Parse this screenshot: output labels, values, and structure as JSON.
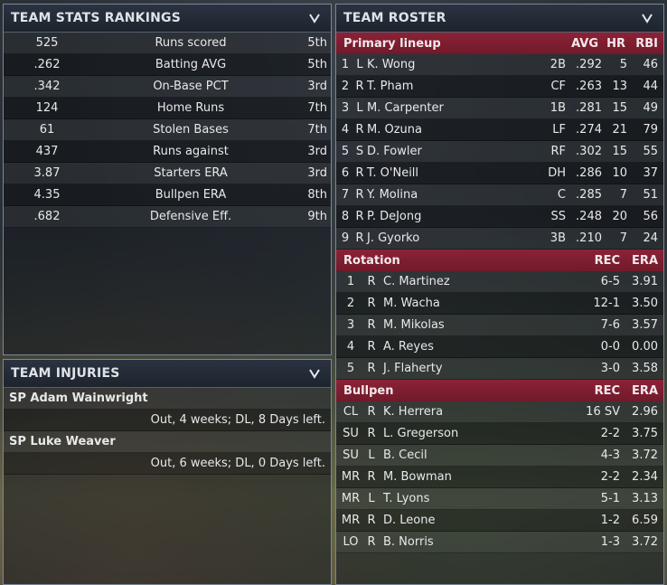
{
  "stats": {
    "title": "TEAM STATS RANKINGS",
    "rows": [
      {
        "value": "525",
        "label": "Runs scored",
        "rank": "5th"
      },
      {
        "value": ".262",
        "label": "Batting AVG",
        "rank": "5th"
      },
      {
        "value": ".342",
        "label": "On-Base PCT",
        "rank": "3rd"
      },
      {
        "value": "124",
        "label": "Home Runs",
        "rank": "7th"
      },
      {
        "value": "61",
        "label": "Stolen Bases",
        "rank": "7th"
      },
      {
        "value": "437",
        "label": "Runs against",
        "rank": "3rd"
      },
      {
        "value": "3.87",
        "label": "Starters ERA",
        "rank": "3rd"
      },
      {
        "value": "4.35",
        "label": "Bullpen ERA",
        "rank": "8th"
      },
      {
        "value": ".682",
        "label": "Defensive Eff.",
        "rank": "9th"
      }
    ]
  },
  "injuries": {
    "title": "TEAM INJURIES",
    "items": [
      {
        "name": "SP Adam Wainwright",
        "status": "Out, 4 weeks; DL, 8 Days left."
      },
      {
        "name": "SP Luke Weaver",
        "status": "Out, 6 weeks; DL, 0 Days left."
      }
    ]
  },
  "roster": {
    "title": "TEAM ROSTER",
    "lineup": {
      "label": "Primary lineup",
      "cols": [
        "AVG",
        "HR",
        "RBI"
      ],
      "rows": [
        {
          "n": "1",
          "hand": "L",
          "name": "K. Wong",
          "pos": "2B",
          "avg": ".292",
          "hr": "5",
          "rbi": "46"
        },
        {
          "n": "2",
          "hand": "R",
          "name": "T. Pham",
          "pos": "CF",
          "avg": ".263",
          "hr": "13",
          "rbi": "44"
        },
        {
          "n": "3",
          "hand": "L",
          "name": "M. Carpenter",
          "pos": "1B",
          "avg": ".281",
          "hr": "15",
          "rbi": "49"
        },
        {
          "n": "4",
          "hand": "R",
          "name": "M. Ozuna",
          "pos": "LF",
          "avg": ".274",
          "hr": "21",
          "rbi": "79"
        },
        {
          "n": "5",
          "hand": "S",
          "name": "D. Fowler",
          "pos": "RF",
          "avg": ".302",
          "hr": "15",
          "rbi": "55"
        },
        {
          "n": "6",
          "hand": "R",
          "name": "T. O'Neill",
          "pos": "DH",
          "avg": ".286",
          "hr": "10",
          "rbi": "37"
        },
        {
          "n": "7",
          "hand": "R",
          "name": "Y. Molina",
          "pos": "C",
          "avg": ".285",
          "hr": "7",
          "rbi": "51"
        },
        {
          "n": "8",
          "hand": "R",
          "name": "P. DeJong",
          "pos": "SS",
          "avg": ".248",
          "hr": "20",
          "rbi": "56"
        },
        {
          "n": "9",
          "hand": "R",
          "name": "J. Gyorko",
          "pos": "3B",
          "avg": ".210",
          "hr": "7",
          "rbi": "24"
        }
      ]
    },
    "rotation": {
      "label": "Rotation",
      "cols": [
        "REC",
        "ERA"
      ],
      "rows": [
        {
          "n": "1",
          "hand": "R",
          "name": "C. Martinez",
          "rec": "6-5",
          "era": "3.91"
        },
        {
          "n": "2",
          "hand": "R",
          "name": "M. Wacha",
          "rec": "12-1",
          "era": "3.50"
        },
        {
          "n": "3",
          "hand": "R",
          "name": "M. Mikolas",
          "rec": "7-6",
          "era": "3.57"
        },
        {
          "n": "4",
          "hand": "R",
          "name": "A. Reyes",
          "rec": "0-0",
          "era": "0.00"
        },
        {
          "n": "5",
          "hand": "R",
          "name": "J. Flaherty",
          "rec": "3-0",
          "era": "3.58"
        }
      ]
    },
    "bullpen": {
      "label": "Bullpen",
      "cols": [
        "REC",
        "ERA"
      ],
      "rows": [
        {
          "n": "CL",
          "hand": "R",
          "name": "K. Herrera",
          "rec": "16 SV",
          "era": "2.96"
        },
        {
          "n": "SU",
          "hand": "R",
          "name": "L. Gregerson",
          "rec": "2-2",
          "era": "3.75"
        },
        {
          "n": "SU",
          "hand": "L",
          "name": "B. Cecil",
          "rec": "4-3",
          "era": "3.72"
        },
        {
          "n": "MR",
          "hand": "R",
          "name": "M. Bowman",
          "rec": "2-2",
          "era": "2.34"
        },
        {
          "n": "MR",
          "hand": "L",
          "name": "T. Lyons",
          "rec": "5-1",
          "era": "3.13"
        },
        {
          "n": "MR",
          "hand": "R",
          "name": "D. Leone",
          "rec": "1-2",
          "era": "6.59"
        },
        {
          "n": "LO",
          "hand": "R",
          "name": "B. Norris",
          "rec": "1-3",
          "era": "3.72"
        }
      ]
    }
  }
}
